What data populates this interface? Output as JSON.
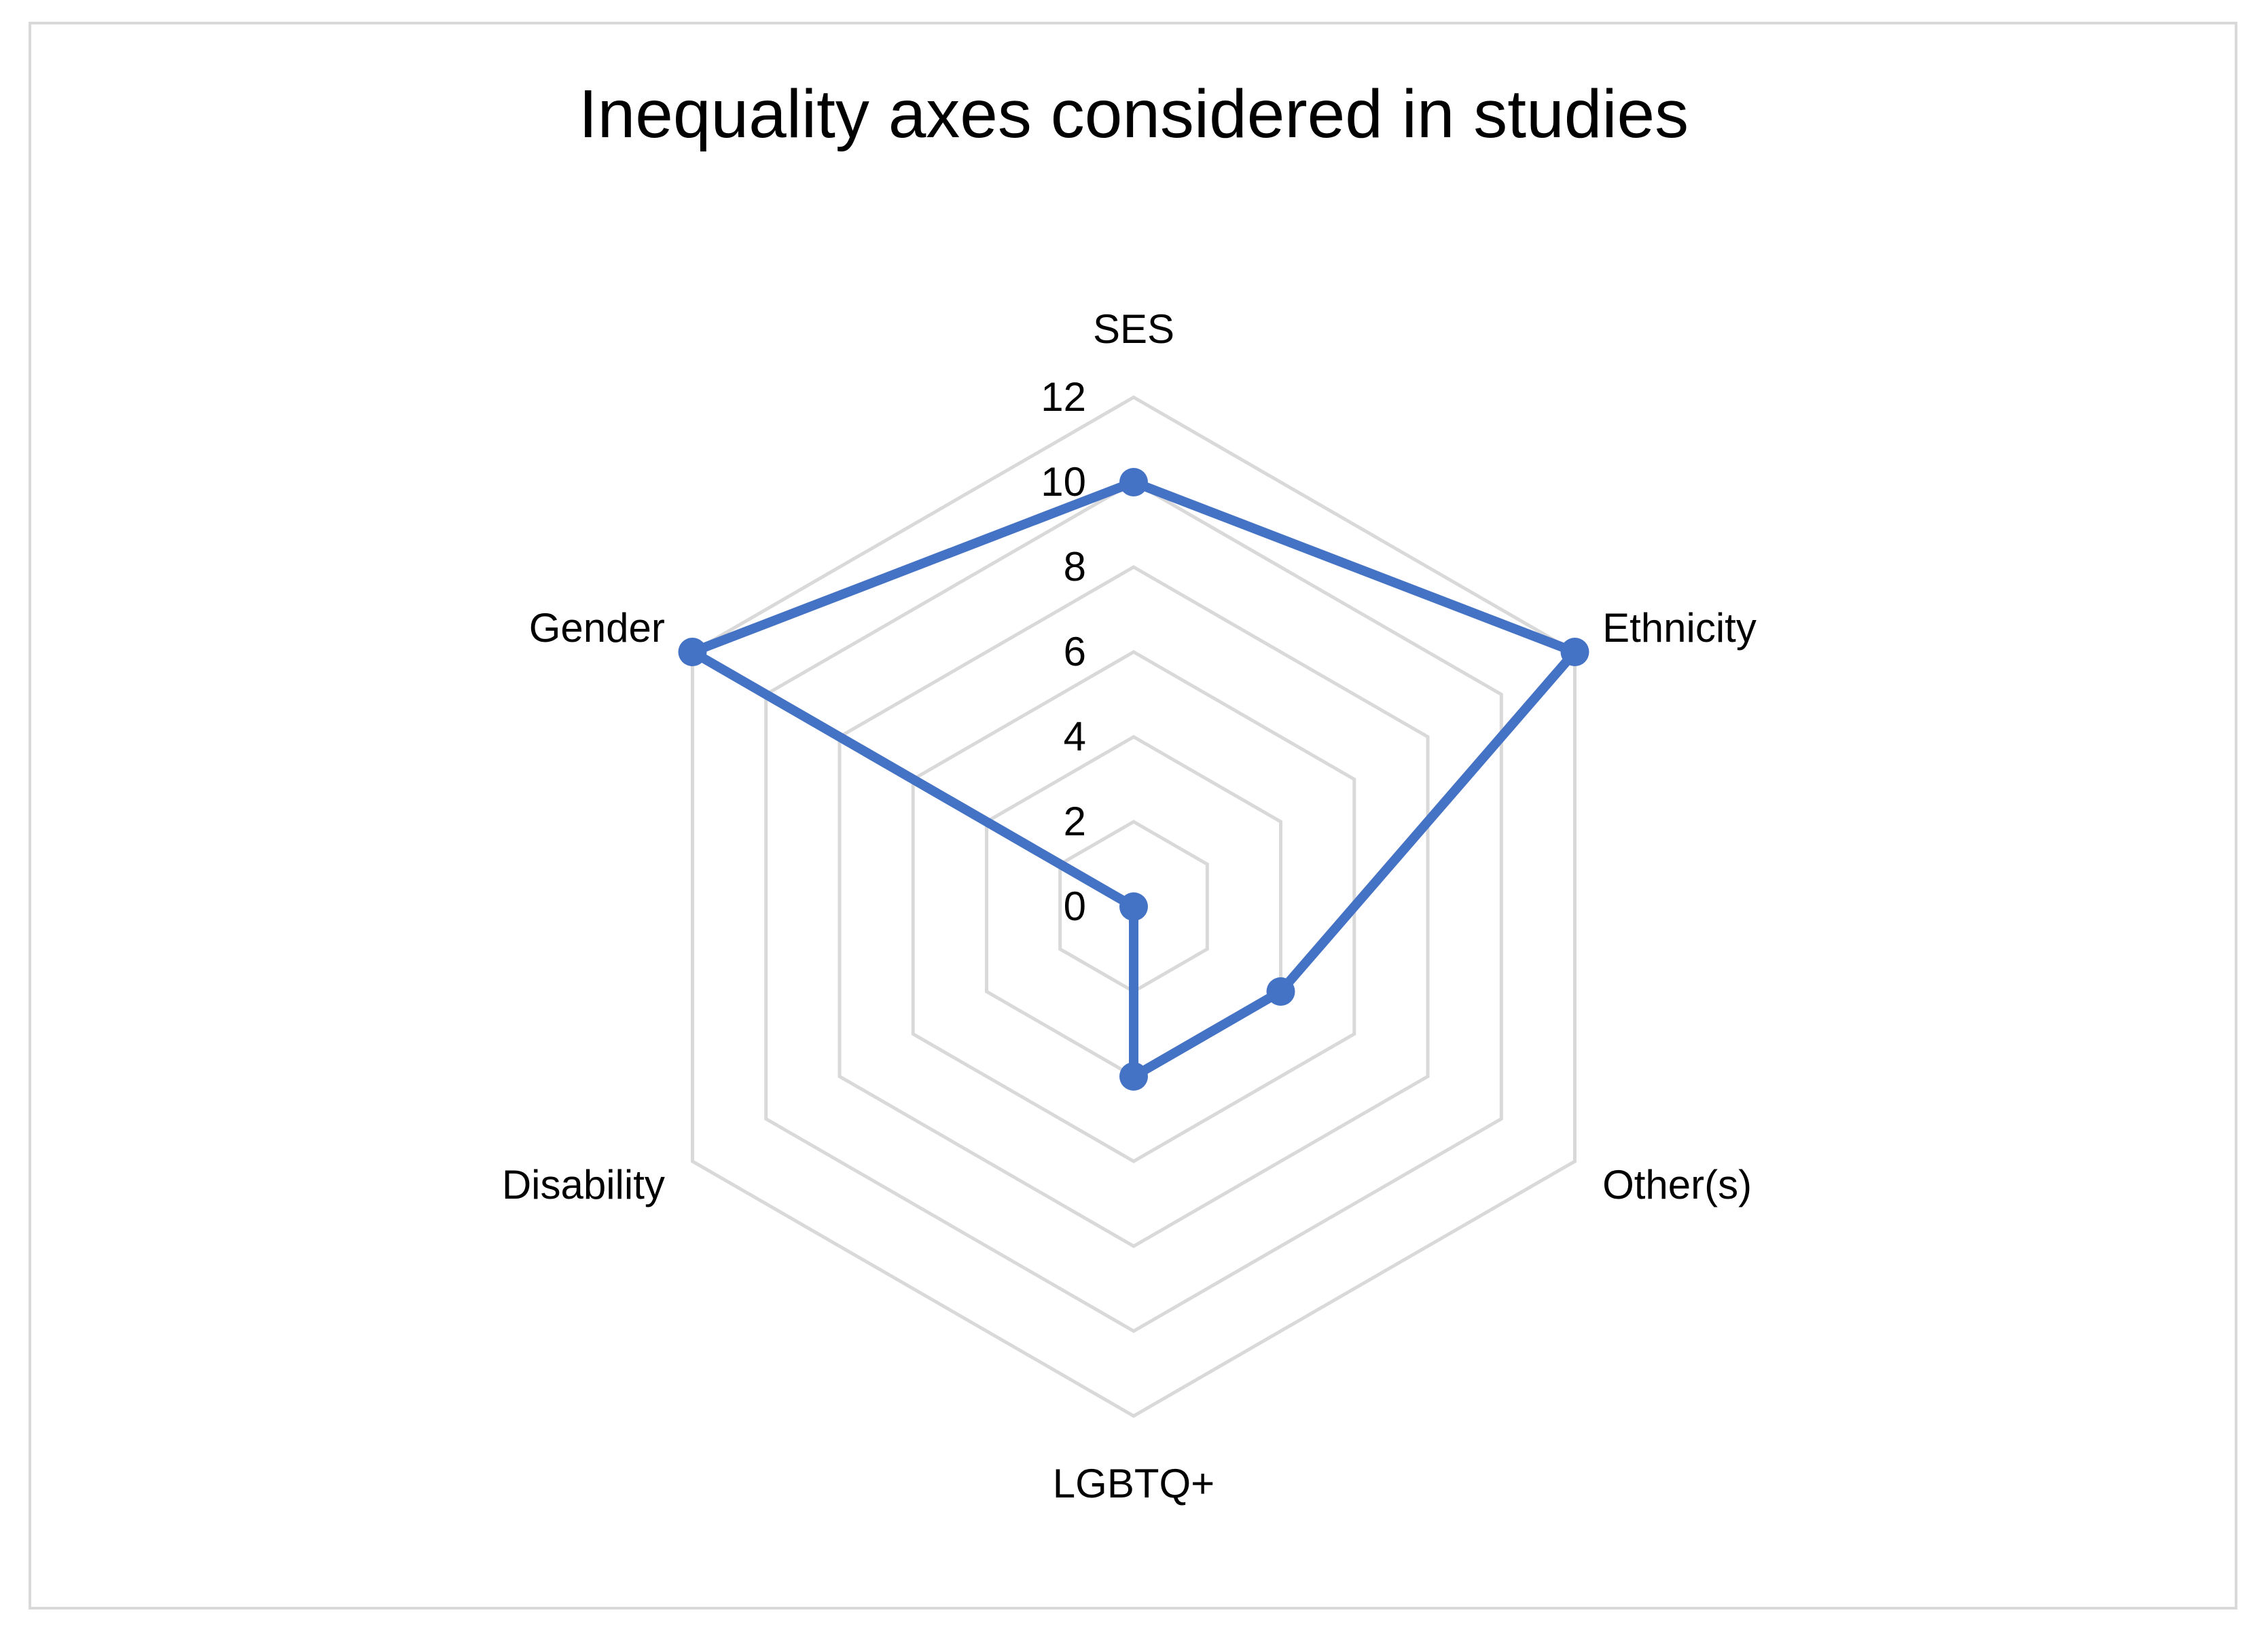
{
  "chart_data": {
    "type": "radar",
    "title": "Inequality axes considered in studies",
    "categories": [
      "SES",
      "Ethnicity",
      "Other(s)",
      "LGBTQ+",
      "Disability",
      "Gender"
    ],
    "series": [
      {
        "values": [
          10,
          12,
          4,
          4,
          0,
          12
        ]
      }
    ],
    "rlim": [
      0,
      12
    ],
    "ticks": [
      "0",
      "2",
      "4",
      "6",
      "8",
      "10",
      "12"
    ],
    "grid": true,
    "legend": "none",
    "colors": {
      "series": "#4472c4",
      "grid": "#d9d9d9",
      "text": "#000000"
    }
  }
}
